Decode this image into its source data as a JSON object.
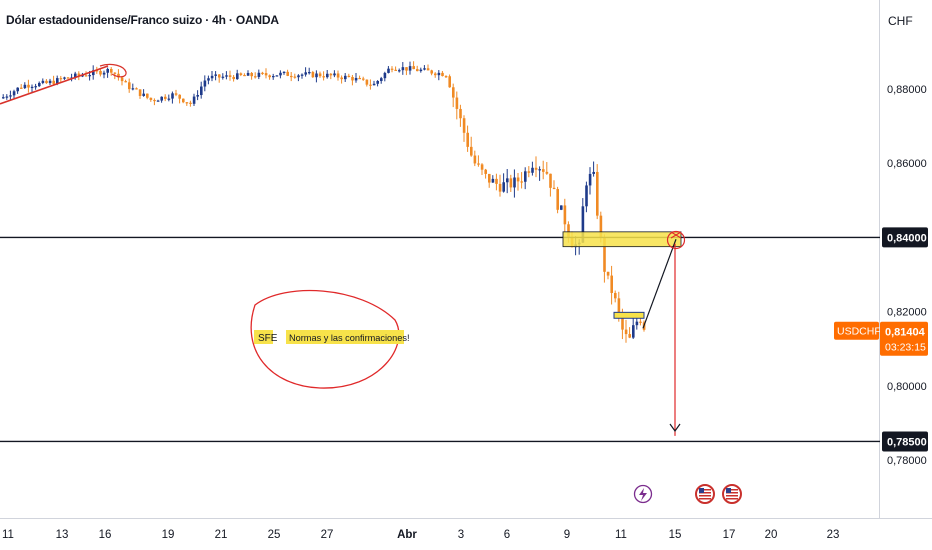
{
  "chart_data": {
    "type": "candlestick",
    "title": "Dólar estadounidense/Franco suizo · 4h · OANDA",
    "currency": "CHF",
    "y_axis": {
      "ticks": [
        "0,88000",
        "0,86000",
        "0,84000",
        "0,82000",
        "0,80000",
        "0,78500",
        "0,78000"
      ],
      "tick_values": [
        0.88,
        0.86,
        0.84,
        0.82,
        0.8,
        0.785,
        0.78
      ],
      "range": [
        0.768,
        0.903
      ]
    },
    "x_axis": {
      "labels": [
        "11",
        "13",
        "16",
        "19",
        "21",
        "25",
        "27",
        "Abr",
        "3",
        "6",
        "9",
        "11",
        "15",
        "17",
        "20",
        "23"
      ]
    },
    "price_label": {
      "symbol": "USDCHF",
      "price": "0,81404",
      "countdown": "03:23:15",
      "value": 0.81404
    },
    "levels": [
      {
        "label": "0,84000",
        "value": 0.84
      },
      {
        "label": "0,78500",
        "value": 0.785
      }
    ],
    "annotations": {
      "box_text_1": "SFE",
      "box_text_2": "Normas y las confirmaciones!"
    },
    "colors": {
      "up": "#1e3a8a",
      "down": "#f08a24",
      "highlight": "#f7e24a",
      "marker": "#e0292a",
      "accent": "#ff6d00"
    },
    "event_icons": [
      "lightning-icon",
      "us-flag-icon",
      "us-flag-icon"
    ]
  }
}
